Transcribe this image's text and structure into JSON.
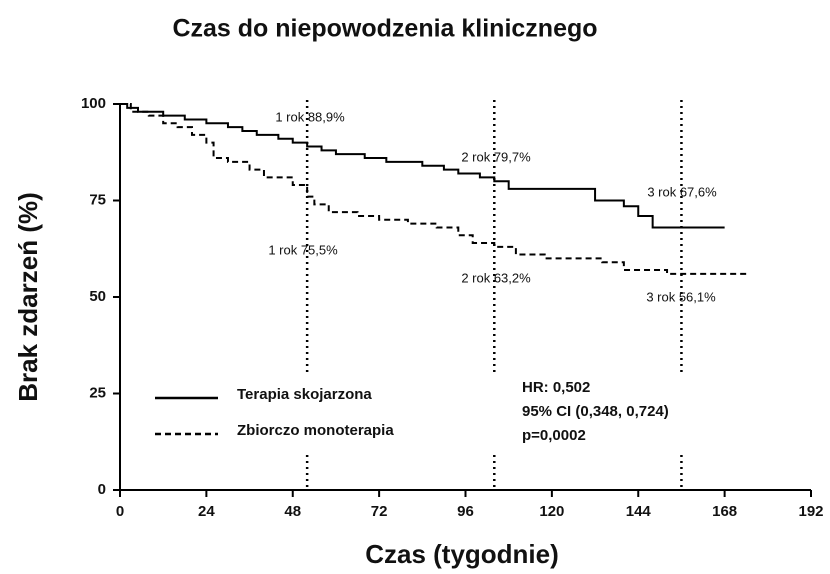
{
  "chart_data": {
    "type": "step",
    "title": "Czas do niepowodzenia klinicznego",
    "x_label": "Czas (tygodnie)",
    "y_label": "Brak zdarzeń (%)",
    "xlim": [
      0,
      192
    ],
    "xticks": [
      0,
      24,
      48,
      72,
      96,
      120,
      144,
      168,
      192
    ],
    "ylim": [
      0,
      100
    ],
    "yticks": [
      0,
      25,
      50,
      75,
      100
    ],
    "vlines": [
      52,
      104,
      156
    ],
    "series": [
      {
        "name": "Terapia skojarzona",
        "color": "#000000",
        "dash": false,
        "x": [
          0,
          2,
          5,
          12,
          18,
          24,
          30,
          34,
          38,
          44,
          48,
          52,
          56,
          60,
          68,
          74,
          84,
          90,
          94,
          100,
          104,
          108,
          132,
          140,
          144,
          148,
          168
        ],
        "y": [
          100,
          99,
          98,
          97,
          96,
          95,
          94,
          93,
          92,
          91,
          90,
          89,
          88,
          87,
          86,
          85,
          84,
          83,
          82,
          81,
          80,
          78,
          75,
          73.5,
          71,
          68,
          68
        ]
      },
      {
        "name": "Zbiorczo monoterapia",
        "color": "#000000",
        "dash": true,
        "x": [
          0,
          3,
          8,
          12,
          16,
          20,
          24,
          26,
          30,
          36,
          40,
          48,
          52,
          54,
          58,
          66,
          72,
          80,
          88,
          94,
          98,
          104,
          110,
          118,
          134,
          140,
          152,
          174
        ],
        "y": [
          100,
          98,
          97,
          95,
          94,
          92,
          90,
          86,
          85,
          83,
          81,
          79,
          76,
          74,
          72,
          71,
          70,
          69,
          68,
          66,
          64,
          63,
          61,
          60,
          59,
          57,
          56,
          56
        ]
      }
    ],
    "annotations": [
      "1 rok 88,9%",
      "2 rok 79,7%",
      "3 rok 67,6%",
      "1 rok 75,5%",
      "2 rok 63,2%",
      "3 rok 56,1%"
    ],
    "stats": [
      "HR: 0,502",
      "95% CI (0,348, 0,724)",
      "p=0,0002"
    ]
  }
}
